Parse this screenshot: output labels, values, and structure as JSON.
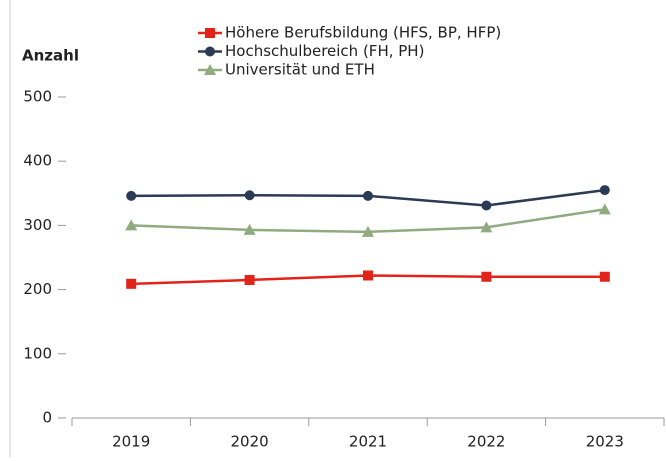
{
  "chart_data": {
    "type": "line",
    "ylabel": "Anzahl",
    "categories": [
      "2019",
      "2020",
      "2021",
      "2022",
      "2023"
    ],
    "series": [
      {
        "name": "Höhere Berufsbildung (HFS, BP, HFP)",
        "color": "#e2231a",
        "marker": "square",
        "values": [
          209,
          215,
          222,
          220,
          220
        ]
      },
      {
        "name": "Hochschulbereich (FH, PH)",
        "color": "#2b3a55",
        "marker": "circle",
        "values": [
          346,
          347,
          346,
          331,
          355
        ]
      },
      {
        "name": "Universität und ETH",
        "color": "#8fab7f",
        "marker": "triangle",
        "values": [
          300,
          293,
          290,
          297,
          325
        ]
      }
    ],
    "ylim": [
      0,
      500
    ],
    "yticks": [
      0,
      100,
      200,
      300,
      400,
      500
    ],
    "grid": false
  }
}
